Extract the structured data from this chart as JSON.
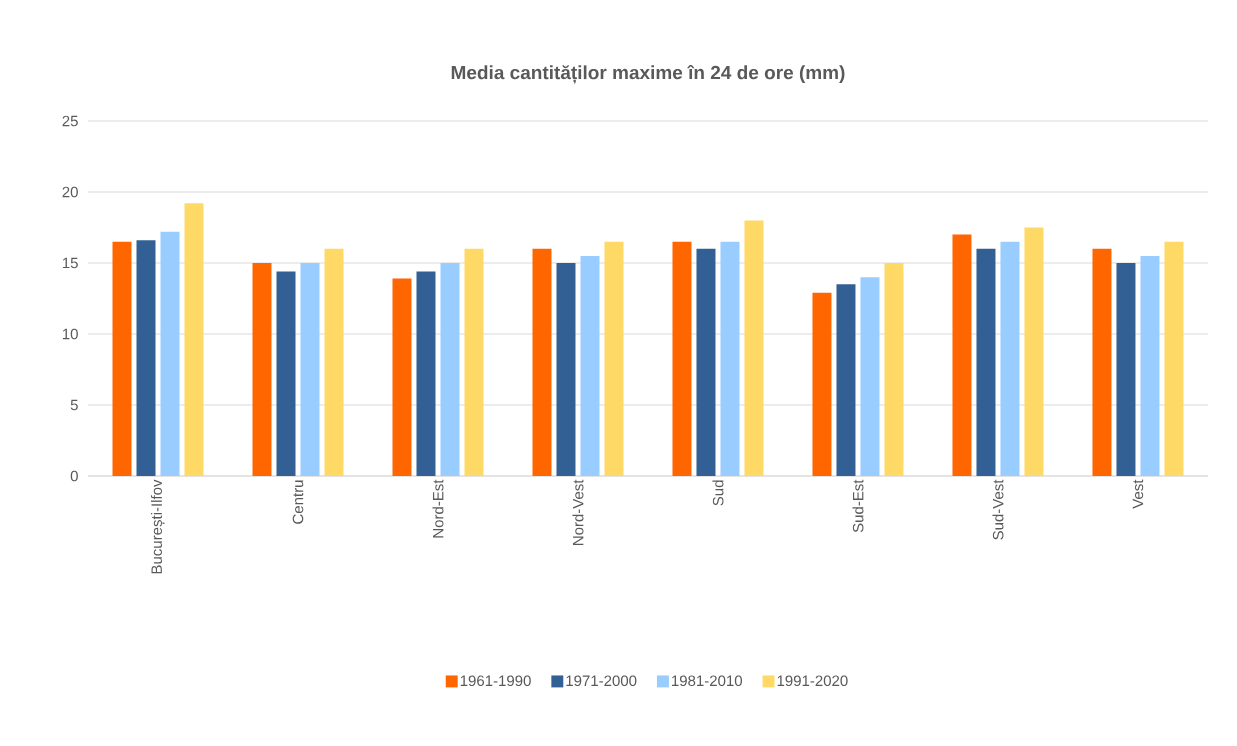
{
  "chart_data": {
    "type": "bar",
    "title": "Media cantităților maxime în 24 de ore (mm)",
    "categories": [
      "București-Ilfov",
      "Centru",
      "Nord-Est",
      "Nord-Vest",
      "Sud",
      "Sud-Est",
      "Sud-Vest",
      "Vest"
    ],
    "series": [
      {
        "name": "1961-1990",
        "color": "#ff6600",
        "values": [
          16.5,
          15,
          13.9,
          16,
          16.5,
          12.9,
          17,
          16
        ]
      },
      {
        "name": "1971-2000",
        "color": "#336094",
        "values": [
          16.6,
          14.4,
          14.4,
          15,
          16,
          13.5,
          16,
          15
        ]
      },
      {
        "name": "1981-2010",
        "color": "#99ccff",
        "values": [
          17.2,
          15,
          15,
          15.5,
          16.5,
          14,
          16.5,
          15.5
        ]
      },
      {
        "name": "1991-2020",
        "color": "#ffd966",
        "values": [
          19.2,
          16,
          16,
          16.5,
          18,
          15,
          17.5,
          16.5
        ]
      }
    ],
    "ylim": [
      0,
      25
    ],
    "yticks": [
      0,
      5,
      10,
      15,
      20,
      25
    ],
    "grid": "y",
    "legend": "bottom"
  }
}
